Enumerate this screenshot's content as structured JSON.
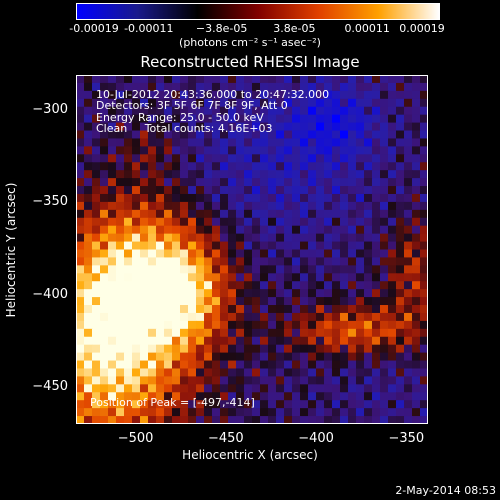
{
  "colorbar": {
    "ticks": [
      "-0.00019",
      "-0.00011",
      "−3.8e-05",
      "3.8e-05",
      "0.00011",
      "0.00019"
    ],
    "unit": "(photons cm⁻² s⁻¹ asec⁻²)",
    "colors": [
      "#0000ff",
      "#1a1a8c",
      "#000000",
      "#800000",
      "#e04000",
      "#ffa000",
      "#ffffff"
    ]
  },
  "info": {
    "line1": "10-Jul-2012 20:43:36.000 to 20:47:32.000",
    "line2": "Detectors: 3F 5F 6F 7F 8F 9F, Att 0",
    "line3": "Energy Range: 25.0 - 50.0 keV",
    "line4": "Clean     Total counts: 4.16E+03",
    "peak": "Position of Peak = [-497,-414]"
  },
  "footer": "2-May-2014 08:53",
  "chart_data": {
    "type": "heatmap",
    "title": "Reconstructed RHESSI Image",
    "xlabel": "Heliocentric X (arcsec)",
    "ylabel": "Heliocentric Y (arcsec)",
    "xlim": [
      -533,
      -338
    ],
    "ylim": [
      -470,
      -281
    ],
    "xticks": [
      -500,
      -450,
      -400,
      -350
    ],
    "yticks": [
      -300,
      -350,
      -400,
      -450
    ],
    "xtick_labels": [
      "−500",
      "−450",
      "−400",
      "−350"
    ],
    "ytick_labels": [
      "−300",
      "−350",
      "−400",
      "−450"
    ],
    "clim": [
      -0.00019,
      0.00019
    ],
    "peak_position": [
      -497,
      -414
    ]
  }
}
